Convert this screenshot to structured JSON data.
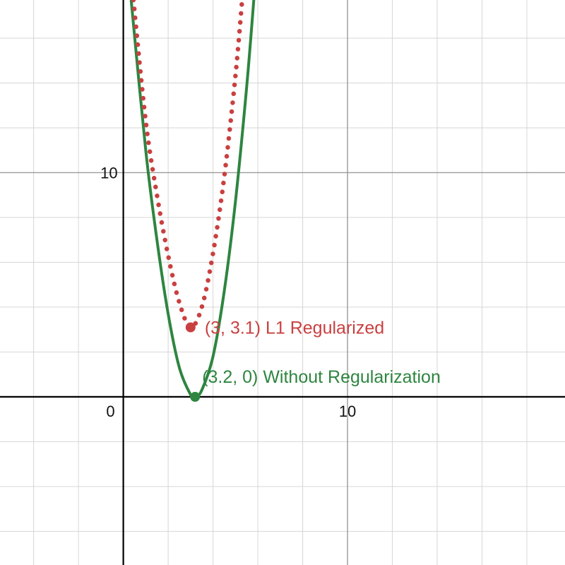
{
  "chart_data": {
    "type": "line",
    "title": "",
    "xlabel": "",
    "ylabel": "",
    "xlim": [
      -5.5,
      19.7
    ],
    "ylim": [
      -7.5,
      17.7
    ],
    "grid": true,
    "minor_step": 2,
    "major_step": 10,
    "tick_labels": {
      "origin": "0",
      "x": [
        {
          "value": 10,
          "label": "10"
        }
      ],
      "y": [
        {
          "value": 10,
          "label": "10"
        }
      ]
    },
    "series": [
      {
        "style": "solid",
        "color": "#2e8540",
        "x": [
          0.35,
          1.0,
          1.5,
          2.0,
          2.5,
          3.0,
          3.2,
          3.5,
          4.0,
          4.5,
          5.0,
          5.5,
          5.82
        ],
        "y": [
          17.7,
          11.0,
          7.0,
          3.7,
          1.3,
          0.1,
          0.0,
          0.3,
          1.8,
          4.7,
          8.7,
          13.8,
          17.7
        ]
      },
      {
        "style": "dotted",
        "color": "#c94040",
        "x": [
          0.45,
          1.0,
          1.5,
          2.0,
          2.5,
          3.0,
          3.5,
          4.0,
          4.5,
          5.0,
          5.3
        ],
        "y": [
          17.7,
          12.3,
          9.0,
          6.3,
          4.2,
          3.1,
          4.0,
          6.4,
          9.8,
          14.3,
          17.7
        ]
      }
    ],
    "points": [
      {
        "x": 3.0,
        "y": 3.1,
        "color": "#c94040",
        "label": "(3, 3.1) L1 Regularized"
      },
      {
        "x": 3.2,
        "y": 0.0,
        "color": "#2e8540",
        "label": "(3.2, 0) Without Regularization"
      }
    ]
  }
}
